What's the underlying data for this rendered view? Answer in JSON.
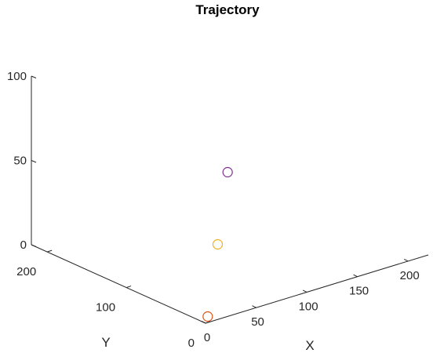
{
  "chart_data": {
    "type": "scatter3d",
    "title": "Trajectory",
    "xlabel": "X",
    "ylabel": "Y",
    "zlabel": "",
    "xlim": [
      0,
      220
    ],
    "ylim": [
      0,
      220
    ],
    "zlim": [
      0,
      100
    ],
    "xticks": [
      "0",
      "50",
      "100",
      "150",
      "200"
    ],
    "yticks": [
      "0",
      "100",
      "200"
    ],
    "zticks": [
      "0",
      "50",
      "100"
    ],
    "xtick_values": [
      0,
      50,
      100,
      150,
      200
    ],
    "ytick_values": [
      0,
      100,
      200
    ],
    "ztick_values": [
      0,
      50,
      100
    ],
    "grid": false,
    "marker": "open-circle",
    "points": [
      {
        "x": 10,
        "y": 10,
        "z": 0,
        "color": "#d95319"
      },
      {
        "x": 55,
        "y": 55,
        "z": 25,
        "color": "#edb120"
      },
      {
        "x": 100,
        "y": 100,
        "z": 50,
        "color": "#7e2f8e"
      }
    ]
  }
}
